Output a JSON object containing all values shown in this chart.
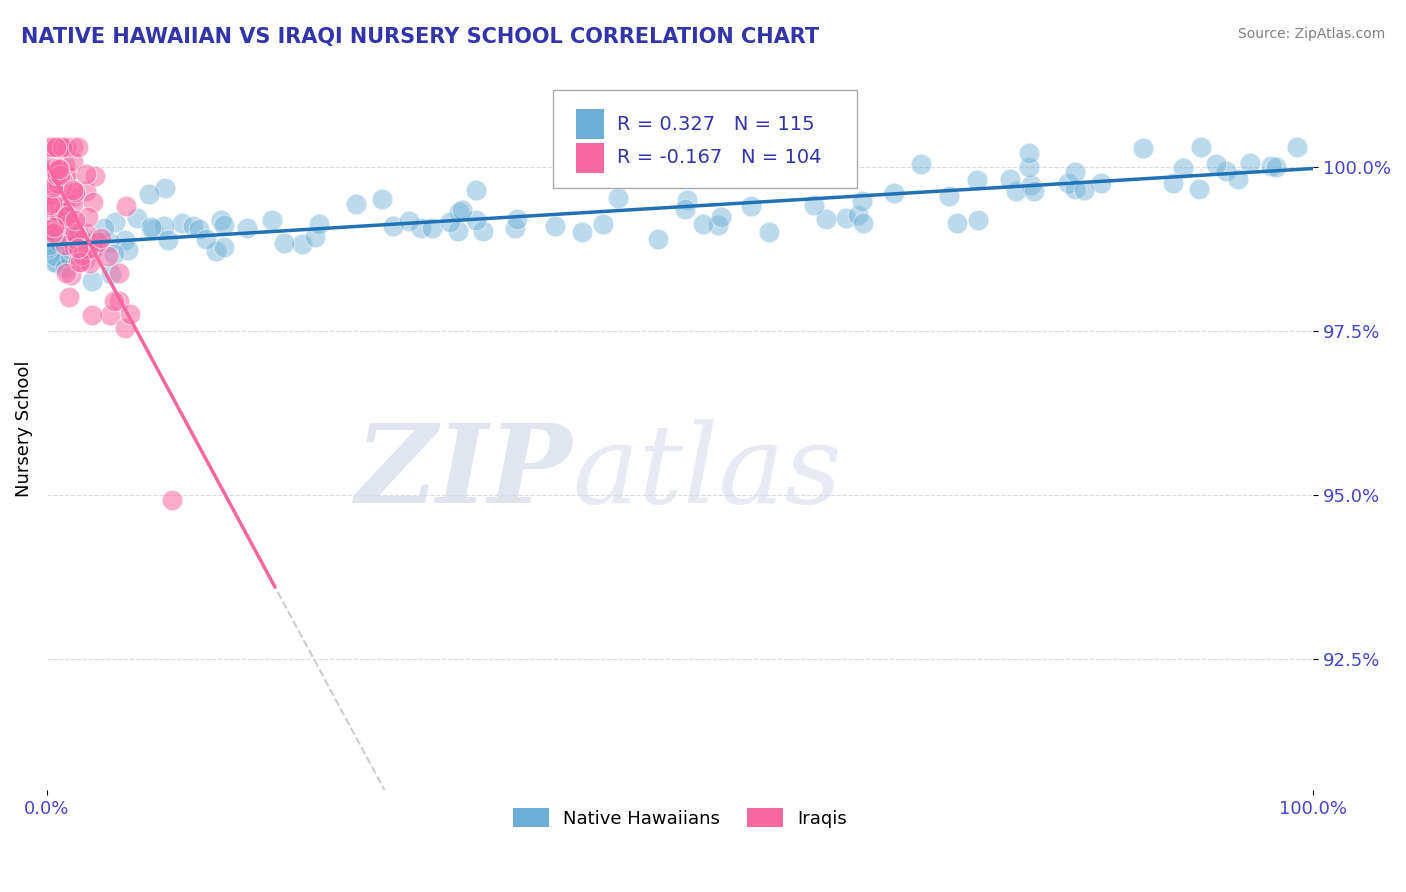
{
  "title": "NATIVE HAWAIIAN VS IRAQI NURSERY SCHOOL CORRELATION CHART",
  "source": "Source: ZipAtlas.com",
  "ylabel": "Nursery School",
  "yticks": [
    92.5,
    95.0,
    97.5,
    100.0
  ],
  "ytick_labels": [
    "92.5%",
    "95.0%",
    "97.5%",
    "100.0%"
  ],
  "xlim": [
    0.0,
    100.0
  ],
  "ylim": [
    90.5,
    101.5
  ],
  "blue_R": 0.327,
  "blue_N": 115,
  "pink_R": -0.167,
  "pink_N": 104,
  "blue_color": "#6baed6",
  "pink_color": "#f768a1",
  "blue_line_color": "#2171b5",
  "pink_dashed_color": "#cccccc",
  "watermark_color": "#d4daea",
  "legend_blue": "Native Hawaiians",
  "legend_pink": "Iraqis",
  "title_color": "#3333aa",
  "axis_tick_color": "#4444cc",
  "rbox_color": "#3333aa"
}
